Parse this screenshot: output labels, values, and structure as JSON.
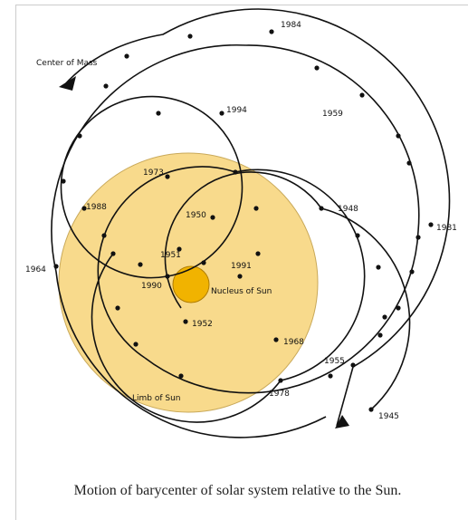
{
  "diagram": {
    "labels": {
      "center_of_mass": "Center of Mass",
      "nucleus": "Nucleus of Sun",
      "limb": "Limb of Sun"
    },
    "years": [
      "1984",
      "1994",
      "1959",
      "1973",
      "1988",
      "1950",
      "1948",
      "1981",
      "1964",
      "1951",
      "1991",
      "1990",
      "1952",
      "1968",
      "1955",
      "1978",
      "1945"
    ]
  },
  "caption": "Motion of barycenter of solar system relative to the Sun."
}
